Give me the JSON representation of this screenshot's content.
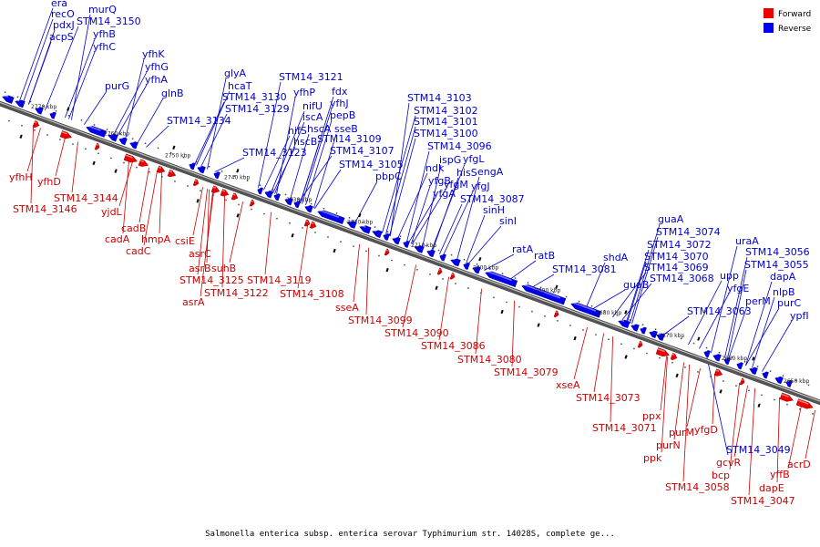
{
  "legend": [
    {
      "label": "Forward",
      "color": "#ee0000"
    },
    {
      "label": "Reverse",
      "color": "#0000ee"
    }
  ],
  "caption": "Salmonella enterica subsp. enterica serovar Typhimurium str. 14028S, complete ge...",
  "ticks": [
    "2770 kbp",
    "2760 kbp",
    "2750 kbp",
    "2740 kbp",
    "2730 kbp",
    "2720 kbp",
    "2710 kbp",
    "2700 kbp",
    "2690 kbp",
    "2680 kbp",
    "2670 kbp",
    "2660 kbp",
    "2650 kbp"
  ],
  "reverse_labels": [
    "era",
    "recO",
    "pdxJ",
    "acpS",
    "murQ",
    "STM14_3150",
    "yfhB",
    "yfhC",
    "purG",
    "yfhK",
    "yfhG",
    "yfhA",
    "glnB",
    "STM14_3134",
    "glyA",
    "hcaT",
    "STM14_3130",
    "STM14_3129",
    "STM14_3121",
    "yfhP",
    "nifU",
    "iscA",
    "nifS",
    "hscB",
    "hscA",
    "fdx",
    "yfhJ",
    "pepB",
    "sseB",
    "STM14_3109",
    "STM14_3107",
    "STM14_3123",
    "STM14_3105",
    "pbpC",
    "STM14_3103",
    "STM14_3102",
    "STM14_3101",
    "STM14_3100",
    "STM14_3096",
    "ispG",
    "yfgL",
    "ndk",
    "hisS",
    "engA",
    "yfgB",
    "yfgM",
    "yfgJ",
    "yfgA",
    "STM14_3087",
    "sinH",
    "sinI",
    "ratA",
    "ratB",
    "STM14_3081",
    "shdA",
    "guaB",
    "guaA",
    "STM14_3074",
    "STM14_3072",
    "STM14_3070",
    "STM14_3069",
    "STM14_3068",
    "uraA",
    "STM14_3056",
    "STM14_3055",
    "upp",
    "yfgE",
    "dapA",
    "nlpB",
    "perM",
    "purC",
    "ypfI",
    "STM14_3063",
    "STM14_3049"
  ],
  "forward_labels": [
    "yfhH",
    "yfhD",
    "STM14_3144",
    "STM14_3146",
    "yjdL",
    "cadB",
    "cadA",
    "hmpA",
    "cadC",
    "csiE",
    "asrC",
    "asrB",
    "suhB",
    "STM14_3125",
    "STM14_3119",
    "STM14_3122",
    "asrA",
    "STM14_3108",
    "sseA",
    "STM14_3099",
    "STM14_3090",
    "STM14_3086",
    "STM14_3080",
    "STM14_3079",
    "xseA",
    "STM14_3073",
    "ppx",
    "STM14_3071",
    "purM",
    "purN",
    "ppk",
    "yfgD",
    "gcvR",
    "bcp",
    "STM14_3058",
    "dapE",
    "yffB",
    "acrD",
    "STM14_3047"
  ]
}
